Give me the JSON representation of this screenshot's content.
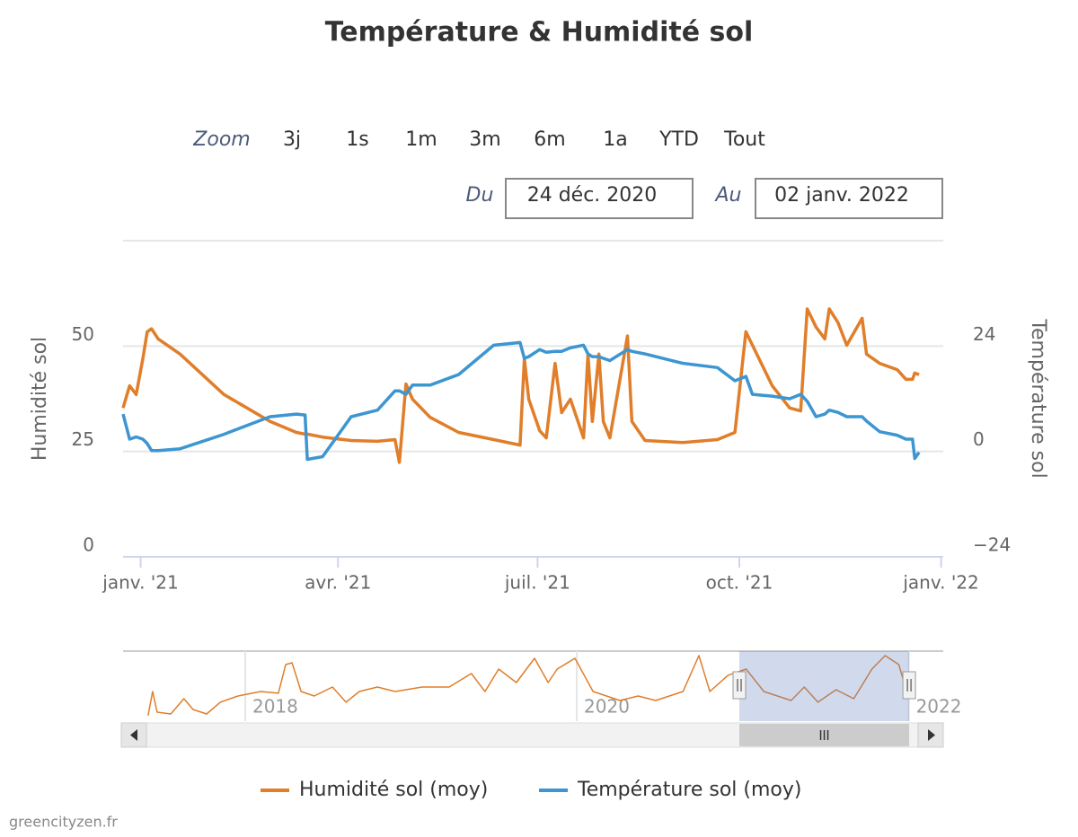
{
  "chart_data": [
    {
      "type": "line",
      "title": "Température & Humidité sol",
      "x": [
        "2020-12-24",
        "2020-12-27",
        "2020-12-30",
        "2021-01-02",
        "2021-01-04",
        "2021-01-06",
        "2021-01-09",
        "2021-01-19",
        "2021-02-08",
        "2021-03-01",
        "2021-03-13",
        "2021-03-17",
        "2021-03-18",
        "2021-03-25",
        "2021-04-07",
        "2021-04-19",
        "2021-04-27",
        "2021-04-29",
        "2021-05-02",
        "2021-05-05",
        "2021-05-13",
        "2021-05-26",
        "2021-06-11",
        "2021-06-23",
        "2021-06-25",
        "2021-06-27",
        "2021-07-02",
        "2021-07-05",
        "2021-07-09",
        "2021-07-12",
        "2021-07-16",
        "2021-07-22",
        "2021-07-24",
        "2021-07-26",
        "2021-07-29",
        "2021-07-31",
        "2021-08-03",
        "2021-08-11",
        "2021-08-13",
        "2021-08-19",
        "2021-09-05",
        "2021-09-21",
        "2021-09-29",
        "2021-10-04",
        "2021-10-07",
        "2021-10-16",
        "2021-10-24",
        "2021-10-29",
        "2021-11-01",
        "2021-11-05",
        "2021-11-09",
        "2021-11-11",
        "2021-11-15",
        "2021-11-19",
        "2021-11-26",
        "2021-11-28",
        "2021-12-04",
        "2021-12-12",
        "2021-12-16",
        "2021-12-19",
        "2021-12-20",
        "2021-12-22"
      ],
      "series": [
        {
          "name": "Humidité sol (moy)",
          "color": "#e07e2a",
          "axis": "y",
          "values": [
            35.3,
            40.6,
            38.5,
            47.0,
            53.4,
            54.1,
            51.7,
            48.1,
            38.5,
            32.1,
            29.5,
            29.1,
            29.1,
            28.4,
            27.6,
            27.4,
            27.8,
            22.4,
            41.0,
            37.4,
            33.1,
            29.5,
            27.8,
            26.5,
            47.0,
            37.4,
            29.9,
            28.2,
            45.9,
            34.2,
            37.4,
            28.2,
            48.1,
            32.1,
            48.1,
            32.1,
            28.2,
            52.4,
            32.1,
            27.6,
            27.1,
            27.8,
            29.5,
            53.4,
            50.2,
            40.6,
            35.3,
            34.6,
            58.8,
            54.5,
            51.7,
            58.8,
            55.6,
            50.2,
            56.6,
            48.1,
            45.9,
            44.4,
            42.1,
            42.1,
            43.6,
            43.2
          ]
        },
        {
          "name": "Température sol (moy)",
          "color": "#3d96d1",
          "axis": "y2",
          "values": [
            8.5,
            2.8,
            3.3,
            2.8,
            1.8,
            0.2,
            0.2,
            0.6,
            3.9,
            7.9,
            8.5,
            8.3,
            -1.8,
            -1.2,
            7.9,
            9.4,
            13.8,
            13.8,
            13.0,
            15.1,
            15.1,
            17.5,
            24.2,
            24.8,
            21.2,
            21.6,
            23.2,
            22.6,
            22.8,
            22.8,
            23.6,
            24.2,
            22.2,
            21.6,
            21.6,
            21.2,
            20.7,
            23.2,
            22.8,
            22.2,
            20.1,
            19.1,
            16.1,
            17.1,
            13.0,
            12.6,
            12.0,
            13.0,
            11.4,
            7.9,
            8.5,
            9.4,
            8.9,
            7.9,
            7.9,
            6.9,
            4.5,
            3.7,
            2.8,
            2.8,
            -1.6,
            -0.2
          ]
        }
      ],
      "xlim": [
        {
          "value": "2020-12-24",
          "label": "24 déc. 2020"
        },
        {
          "value": "2022-01-02",
          "label": "02 janv. 2022"
        }
      ],
      "xticks": [
        {
          "value": "2021-01-01",
          "label": "janv. '21"
        },
        {
          "value": "2021-04-01",
          "label": "avr. '21"
        },
        {
          "value": "2021-07-01",
          "label": "juil. '21"
        },
        {
          "value": "2021-10-01",
          "label": "oct. '21"
        },
        {
          "value": "2022-01-01",
          "label": "janv. '22"
        }
      ],
      "ylabel": "Humidité sol",
      "ylim": [
        0,
        75
      ],
      "yticks": [
        0,
        25,
        50
      ],
      "y2label": "Température sol",
      "y2lim": [
        -24,
        48
      ],
      "y2ticks": [
        {
          "value": -24,
          "label": "−24"
        },
        0,
        24
      ],
      "grid": true,
      "legend": "bottom"
    },
    {
      "type": "line",
      "x": [
        "2017-06-01",
        "2017-06-11",
        "2017-06-21",
        "2017-07-21",
        "2017-08-19",
        "2017-09-08",
        "2017-10-08",
        "2017-11-07",
        "2017-12-16",
        "2018-02-04",
        "2018-03-15",
        "2018-03-31",
        "2018-04-14",
        "2018-05-04",
        "2018-06-02",
        "2018-07-12",
        "2018-08-11",
        "2018-09-09",
        "2018-10-19",
        "2018-11-27",
        "2019-01-26",
        "2019-03-26",
        "2019-05-14",
        "2019-06-13",
        "2019-07-13",
        "2019-08-21",
        "2019-09-30",
        "2019-10-30",
        "2019-11-19",
        "2019-12-28",
        "2020-02-06",
        "2020-04-05",
        "2020-05-15",
        "2020-06-23",
        "2020-08-22",
        "2020-09-26",
        "2020-10-20",
        "2020-11-29",
        "2021-01-08",
        "2021-02-16",
        "2021-04-17",
        "2021-05-16",
        "2021-06-15",
        "2021-07-25",
        "2021-09-02",
        "2021-10-12",
        "2021-11-10",
        "2021-12-10",
        "2021-12-22"
      ],
      "series": [
        {
          "color": "#e07e2a",
          "values": [
            23.4,
            38.5,
            25.6,
            24.5,
            34.0,
            27.3,
            24.5,
            31.8,
            35.7,
            38.5,
            37.4,
            55.3,
            56.4,
            38.5,
            35.7,
            41.3,
            31.8,
            38.5,
            41.3,
            38.5,
            41.3,
            41.3,
            49.7,
            38.5,
            52.5,
            44.1,
            59.2,
            44.1,
            52.5,
            59.2,
            38.5,
            32.9,
            35.7,
            32.9,
            38.5,
            60.9,
            38.5,
            48.6,
            52.5,
            38.5,
            32.9,
            41.3,
            31.8,
            39.6,
            34.0,
            52.5,
            60.9,
            55.3,
            44.1
          ]
        }
      ],
      "xlim": [
        "2017-04-07",
        "2022-03-18"
      ],
      "ylim": [
        20,
        62
      ],
      "xticks": [
        {
          "value": "2018-01-01",
          "label": "2018"
        },
        {
          "value": "2020-01-01",
          "label": "2020"
        },
        {
          "value": "2022-01-01",
          "label": "2022"
        }
      ]
    }
  ],
  "range_selector": {
    "zoom": "Zoom",
    "buttons": [
      "3j",
      "1s",
      "1m",
      "3m",
      "6m",
      "1a",
      "YTD",
      "Tout"
    ],
    "from": "Du",
    "to": "Au"
  },
  "credits": "greencityzen.fr"
}
